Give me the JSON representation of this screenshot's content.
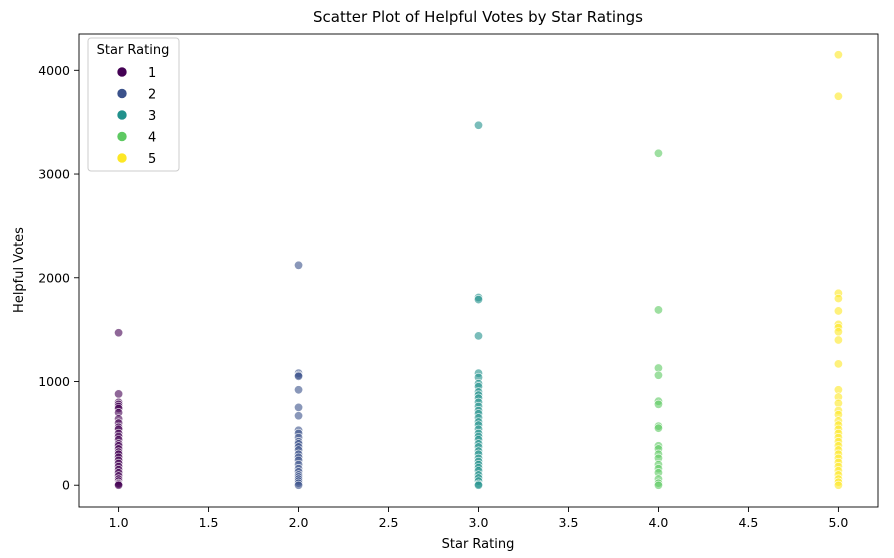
{
  "chart_data": {
    "type": "scatter",
    "title": "Scatter Plot of Helpful Votes by Star Ratings",
    "xlabel": "Star Rating",
    "ylabel": "Helpful Votes",
    "xlim": [
      0.78,
      5.22
    ],
    "ylim": [
      -210,
      4350
    ],
    "xticks": [
      1.0,
      1.5,
      2.0,
      2.5,
      3.0,
      3.5,
      4.0,
      4.5,
      5.0
    ],
    "xtick_labels": [
      "1.0",
      "1.5",
      "2.0",
      "2.5",
      "3.0",
      "3.5",
      "4.0",
      "4.5",
      "5.0"
    ],
    "yticks": [
      0,
      1000,
      2000,
      3000,
      4000
    ],
    "ytick_labels": [
      "0",
      "1000",
      "2000",
      "3000",
      "4000"
    ],
    "grid": false,
    "legend": {
      "title": "Star Rating",
      "placement": "top-left",
      "entries": [
        "1",
        "2",
        "3",
        "4",
        "5"
      ]
    },
    "series": [
      {
        "name": "1",
        "color": "#440154",
        "x": 1,
        "y": [
          1470,
          880,
          800,
          780,
          760,
          740,
          700,
          640,
          600,
          560,
          540,
          500,
          470,
          440,
          400,
          380,
          350,
          320,
          300,
          270,
          240,
          210,
          180,
          150,
          120,
          90,
          60,
          40,
          20,
          10,
          0
        ]
      },
      {
        "name": "2",
        "color": "#3b528b",
        "x": 2,
        "y": [
          2120,
          1080,
          1060,
          1050,
          920,
          750,
          670,
          530,
          500,
          460,
          420,
          400,
          370,
          340,
          300,
          270,
          240,
          200,
          160,
          130,
          100,
          80,
          60,
          40,
          20,
          0
        ]
      },
      {
        "name": "3",
        "color": "#21918c",
        "x": 3,
        "y": [
          3470,
          1810,
          1790,
          1440,
          1080,
          1040,
          980,
          950,
          900,
          870,
          840,
          800,
          760,
          720,
          690,
          650,
          610,
          580,
          540,
          500,
          470,
          440,
          400,
          370,
          330,
          300,
          260,
          230,
          200,
          170,
          140,
          100,
          70,
          40,
          10,
          0
        ]
      },
      {
        "name": "4",
        "color": "#5ec962",
        "x": 4,
        "y": [
          3200,
          1690,
          1130,
          1060,
          810,
          780,
          570,
          550,
          380,
          350,
          300,
          260,
          200,
          160,
          120,
          60,
          20,
          0
        ]
      },
      {
        "name": "5",
        "color": "#fde725",
        "x": 5,
        "y": [
          4150,
          3750,
          1850,
          1800,
          1680,
          1550,
          1520,
          1480,
          1400,
          1170,
          920,
          850,
          790,
          720,
          680,
          620,
          580,
          540,
          500,
          460,
          420,
          380,
          340,
          300,
          260,
          220,
          180,
          140,
          100,
          60,
          30,
          0
        ]
      }
    ]
  }
}
